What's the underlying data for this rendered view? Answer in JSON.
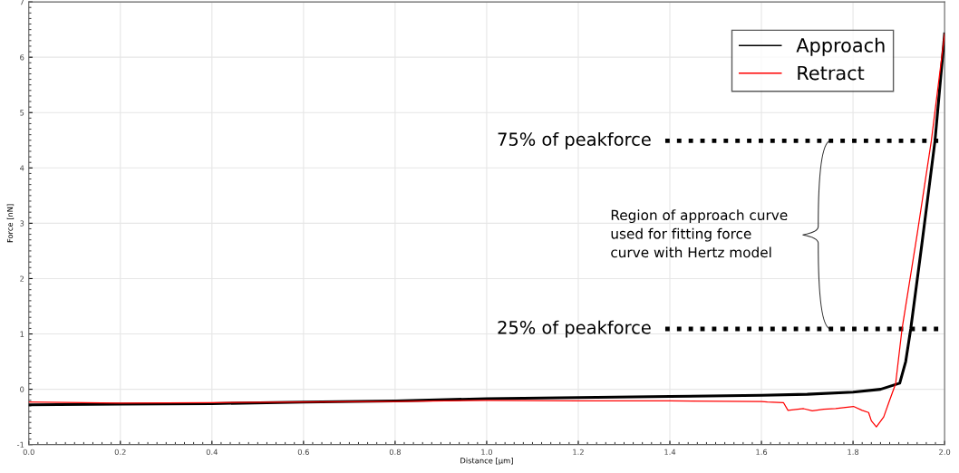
{
  "chart_data": {
    "type": "line",
    "xlabel": "Distance [µm]",
    "ylabel": "Force [nN]",
    "x": [
      0,
      0.2,
      0.4,
      0.6,
      0.8,
      1.0,
      1.2,
      1.4,
      1.6,
      1.7,
      1.8,
      1.86,
      1.902,
      1.915,
      1.926,
      1.95,
      1.979,
      2.0
    ],
    "series": [
      {
        "name": "Approach",
        "color": "#000000",
        "values": [
          -0.28,
          -0.27,
          -0.26,
          -0.23,
          -0.21,
          -0.17,
          -0.15,
          -0.13,
          -0.11,
          -0.09,
          -0.05,
          0.0,
          0.11,
          0.5,
          1.09,
          2.6,
          4.49,
          6.42
        ]
      },
      {
        "name": "Retract",
        "color": "#ff0000",
        "x": [
          0,
          0.2,
          0.4,
          0.6,
          0.8,
          1.0,
          1.2,
          1.4,
          1.6,
          1.613,
          1.648,
          1.658,
          1.692,
          1.711,
          1.736,
          1.762,
          1.801,
          1.82,
          1.834,
          1.84,
          1.851,
          1.867,
          1.879,
          1.893,
          1.907,
          1.94,
          1.971,
          2.0
        ],
        "values": [
          -0.23,
          -0.25,
          -0.24,
          -0.23,
          -0.22,
          -0.2,
          -0.21,
          -0.21,
          -0.22,
          -0.23,
          -0.24,
          -0.38,
          -0.35,
          -0.39,
          -0.36,
          -0.35,
          -0.31,
          -0.38,
          -0.42,
          -0.57,
          -0.68,
          -0.5,
          -0.22,
          0.1,
          1.09,
          2.8,
          4.49,
          6.42
        ]
      }
    ],
    "xlim": [
      0,
      2.0
    ],
    "ylim": [
      -1,
      7
    ],
    "xticks": [
      {
        "value": 0,
        "label": "0.0"
      },
      0.2,
      0.4,
      0.6,
      0.8,
      {
        "value": 1.0,
        "label": "1.0"
      },
      1.2,
      1.4,
      1.6,
      1.8,
      {
        "value": 2.0,
        "label": "2.0"
      }
    ],
    "yticks": [
      -1,
      0,
      1,
      2,
      3,
      4,
      5,
      6,
      7
    ],
    "ref_lines": [
      {
        "axis": "y",
        "value": 4.49,
        "label": "75% of peakforce",
        "color": "#000000",
        "line_style": "dotted"
      },
      {
        "axis": "y",
        "value": 1.09,
        "label": "25% of peakforce",
        "color": "#000000",
        "line_style": "dotted"
      }
    ],
    "annotations": [
      "Region of approach curve\nused for fitting force\ncurve with Hertz model"
    ],
    "grid": true,
    "legend": "top right",
    "line_style": "solid",
    "marker": "none"
  }
}
